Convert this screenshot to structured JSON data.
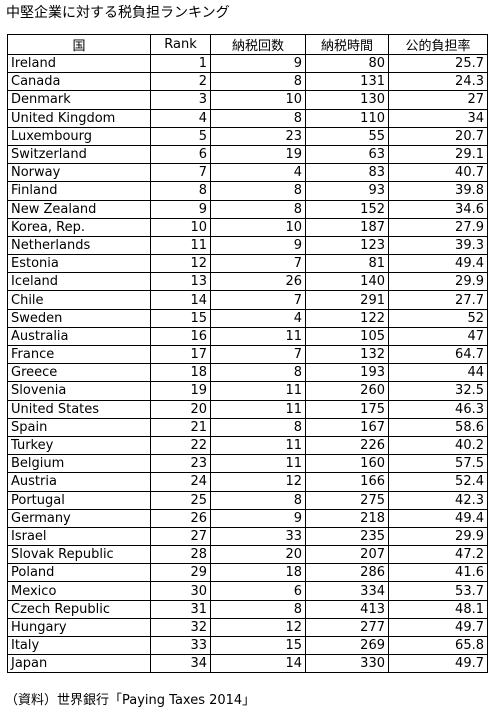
{
  "title": "中堅企業に対する税負担ランキング",
  "headers": [
    "国",
    "Rank",
    "納税回数",
    "納税時間",
    "公的負担率"
  ],
  "rows": [
    [
      "Ireland",
      "1",
      "9",
      "80",
      "25.7"
    ],
    [
      "Canada",
      "2",
      "8",
      "131",
      "24.3"
    ],
    [
      "Denmark",
      "3",
      "10",
      "130",
      "27"
    ],
    [
      "United Kingdom",
      "4",
      "8",
      "110",
      "34"
    ],
    [
      "Luxembourg",
      "5",
      "23",
      "55",
      "20.7"
    ],
    [
      "Switzerland",
      "6",
      "19",
      "63",
      "29.1"
    ],
    [
      "Norway",
      "7",
      "4",
      "83",
      "40.7"
    ],
    [
      "Finland",
      "8",
      "8",
      "93",
      "39.8"
    ],
    [
      "New Zealand",
      "9",
      "8",
      "152",
      "34.6"
    ],
    [
      "Korea, Rep.",
      "10",
      "10",
      "187",
      "27.9"
    ],
    [
      "Netherlands",
      "11",
      "9",
      "123",
      "39.3"
    ],
    [
      "Estonia",
      "12",
      "7",
      "81",
      "49.4"
    ],
    [
      "Iceland",
      "13",
      "26",
      "140",
      "29.9"
    ],
    [
      "Chile",
      "14",
      "7",
      "291",
      "27.7"
    ],
    [
      "Sweden",
      "15",
      "4",
      "122",
      "52"
    ],
    [
      "Australia",
      "16",
      "11",
      "105",
      "47"
    ],
    [
      "France",
      "17",
      "7",
      "132",
      "64.7"
    ],
    [
      "Greece",
      "18",
      "8",
      "193",
      "44"
    ],
    [
      "Slovenia",
      "19",
      "11",
      "260",
      "32.5"
    ],
    [
      "United States",
      "20",
      "11",
      "175",
      "46.3"
    ],
    [
      "Spain",
      "21",
      "8",
      "167",
      "58.6"
    ],
    [
      "Turkey",
      "22",
      "11",
      "226",
      "40.2"
    ],
    [
      "Belgium",
      "23",
      "11",
      "160",
      "57.5"
    ],
    [
      "Austria",
      "24",
      "12",
      "166",
      "52.4"
    ],
    [
      "Portugal",
      "25",
      "8",
      "275",
      "42.3"
    ],
    [
      "Germany",
      "26",
      "9",
      "218",
      "49.4"
    ],
    [
      "Israel",
      "27",
      "33",
      "235",
      "29.9"
    ],
    [
      "Slovak Republic",
      "28",
      "20",
      "207",
      "47.2"
    ],
    [
      "Poland",
      "29",
      "18",
      "286",
      "41.6"
    ],
    [
      "Mexico",
      "30",
      "6",
      "334",
      "53.7"
    ],
    [
      "Czech Republic",
      "31",
      "8",
      "413",
      "48.1"
    ],
    [
      "Hungary",
      "32",
      "12",
      "277",
      "49.7"
    ],
    [
      "Italy",
      "33",
      "15",
      "269",
      "65.8"
    ],
    [
      "Japan",
      "34",
      "14",
      "330",
      "49.7"
    ]
  ],
  "source": "（資料）世界銀行「Paying Taxes 2014」"
}
